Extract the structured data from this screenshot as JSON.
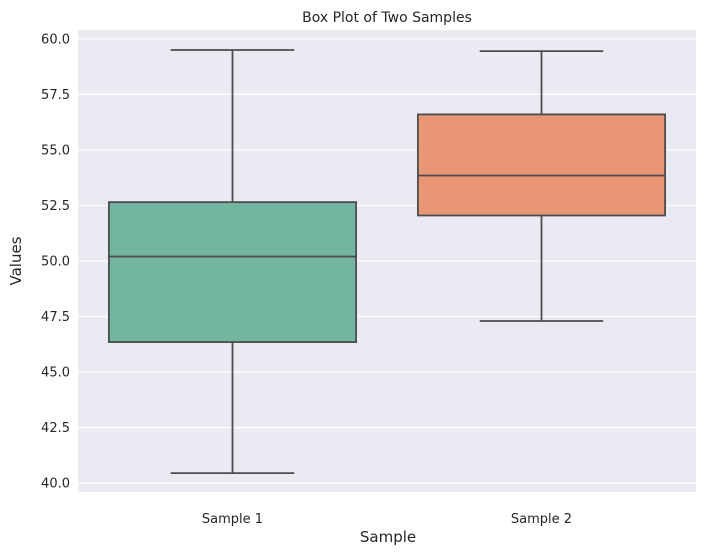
{
  "chart_data": {
    "type": "box",
    "title": "Box Plot of Two Samples",
    "xlabel": "Sample",
    "ylabel": "Values",
    "categories": [
      "Sample 1",
      "Sample 2"
    ],
    "ylim": [
      39.6,
      60.4
    ],
    "yticks": [
      40.0,
      42.5,
      45.0,
      47.5,
      50.0,
      52.5,
      55.0,
      57.5,
      60.0
    ],
    "grid": true,
    "colors": {
      "background": "#EAEAF2",
      "grid": "#FFFFFF",
      "line": "#4D4D4D"
    },
    "series": [
      {
        "category": "Sample 1",
        "whisker_low": 40.45,
        "q1": 46.35,
        "median": 50.2,
        "q3": 52.65,
        "whisker_high": 59.5,
        "color": "#72B6A1"
      },
      {
        "category": "Sample 2",
        "whisker_low": 47.3,
        "q1": 52.05,
        "median": 53.85,
        "q3": 56.6,
        "whisker_high": 59.45,
        "color": "#E99675"
      }
    ]
  }
}
